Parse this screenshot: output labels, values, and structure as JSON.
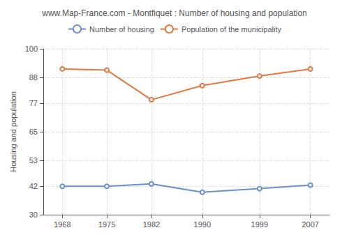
{
  "chart_data": {
    "type": "line",
    "title": "www.Map-France.com - Montfiquet : Number of housing and population",
    "x": [
      1968,
      1975,
      1982,
      1990,
      1999,
      2007
    ],
    "series": [
      {
        "name": "Number of housing",
        "color": "#6a8fc8",
        "marker": "circle",
        "values": [
          42.0,
          42.0,
          43.0,
          39.5,
          41.0,
          42.5
        ]
      },
      {
        "name": "Population of the municipality",
        "color": "#e07840",
        "marker": "circle",
        "values": [
          91.5,
          91.0,
          78.5,
          84.5,
          88.5,
          91.5
        ]
      }
    ],
    "ylabel": "Housing and population",
    "xlim": [
      1965,
      2010
    ],
    "xticks": [
      1968,
      1975,
      1982,
      1990,
      1999,
      2007
    ],
    "ylim": [
      30,
      100
    ],
    "yticks": [
      30,
      42,
      53,
      65,
      77,
      88,
      100
    ],
    "grid": true,
    "legend": "top"
  }
}
